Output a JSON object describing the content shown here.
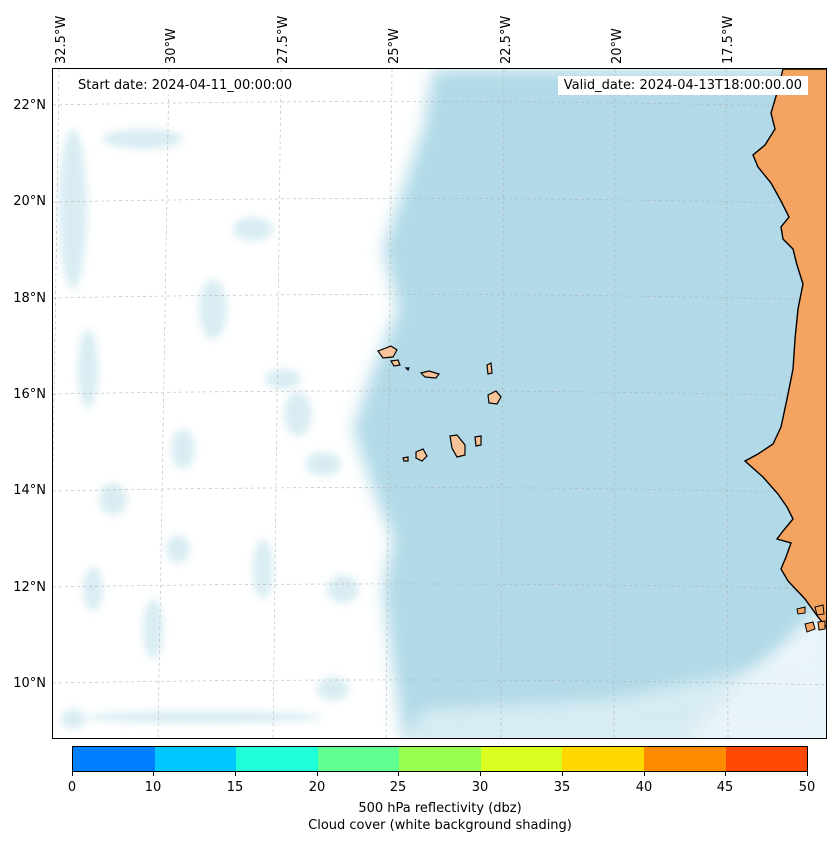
{
  "map": {
    "start_date": "Start date: 2024-04-11_00:00:00",
    "valid_date": "Valid_date: 2024-04-13T18:00:00.00",
    "lon_labels": [
      "32.5°W",
      "30°W",
      "27.5°W",
      "25°W",
      "22.5°W",
      "20°W",
      "17.5°W"
    ],
    "lat_labels": [
      "22°N",
      "20°N",
      "18°N",
      "16°N",
      "14°N",
      "12°N",
      "10°N"
    ],
    "land_color": "#F4A460",
    "island_color": "#F9C39A",
    "cloud_color": "#ADD8E6",
    "features": [
      "Cape Verde islands",
      "West African coastline"
    ]
  },
  "colorbar": {
    "ticks": [
      "0",
      "10",
      "15",
      "20",
      "25",
      "30",
      "35",
      "40",
      "45",
      "50"
    ],
    "colors": [
      "#0080FF",
      "#00C8FF",
      "#20FFD8",
      "#60FF90",
      "#98FF50",
      "#D8FF20",
      "#FFD800",
      "#FF8C00",
      "#FF4800"
    ],
    "title_line1": "500 hPa reflectivity (dbz)",
    "title_line2": "Cloud cover (white background shading)"
  }
}
